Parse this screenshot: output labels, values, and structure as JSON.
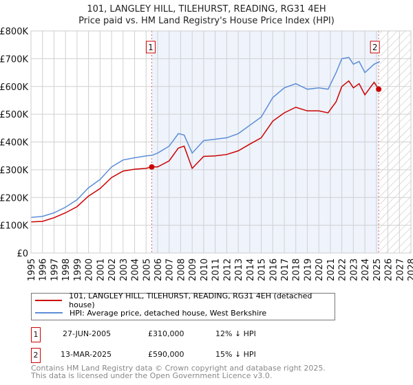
{
  "chart_data": {
    "type": "line",
    "title": "101, LANGLEY HILL, TILEHURST, READING, RG31 4EH",
    "subtitle": "Price paid vs. HM Land Registry's House Price Index (HPI)",
    "xlim": [
      1995,
      2028
    ],
    "ylim": [
      0,
      800000
    ],
    "y_ticks": [
      {
        "v": 0,
        "label": "£0"
      },
      {
        "v": 100000,
        "label": "£100K"
      },
      {
        "v": 200000,
        "label": "£200K"
      },
      {
        "v": 300000,
        "label": "£300K"
      },
      {
        "v": 400000,
        "label": "£400K"
      },
      {
        "v": 500000,
        "label": "£500K"
      },
      {
        "v": 600000,
        "label": "£600K"
      },
      {
        "v": 700000,
        "label": "£700K"
      },
      {
        "v": 800000,
        "label": "£800K"
      }
    ],
    "x_ticks": [
      "1995",
      "1996",
      "1997",
      "1998",
      "1999",
      "2000",
      "2001",
      "2002",
      "2003",
      "2004",
      "2005",
      "2006",
      "2007",
      "2008",
      "2009",
      "2010",
      "2011",
      "2012",
      "2013",
      "2014",
      "2015",
      "2016",
      "2017",
      "2018",
      "2019",
      "2020",
      "2021",
      "2022",
      "2023",
      "2024",
      "2025",
      "2026",
      "2027",
      "2028"
    ],
    "grid": true,
    "series": [
      {
        "name": "101, LANGLEY HILL, TILEHURST, READING, RG31 4EH (detached house)",
        "color": "#cc0000",
        "x": [
          1995,
          1996,
          1997,
          1998,
          1999,
          2000,
          2001,
          2002,
          2003,
          2004,
          2005,
          2005.5,
          2006,
          2007,
          2007.8,
          2008.3,
          2009,
          2010,
          2011,
          2012,
          2013,
          2014,
          2015,
          2016,
          2017,
          2018,
          2019,
          2020,
          2020.8,
          2021.5,
          2022,
          2022.6,
          2023,
          2023.5,
          2024,
          2024.8,
          2025.2
        ],
        "y": [
          112000,
          114000,
          127000,
          145000,
          167000,
          205000,
          232000,
          272000,
          295000,
          302000,
          305000,
          310000,
          310000,
          332000,
          378000,
          385000,
          305000,
          348000,
          350000,
          355000,
          368000,
          392000,
          415000,
          475000,
          505000,
          525000,
          512000,
          512000,
          505000,
          545000,
          600000,
          620000,
          595000,
          610000,
          570000,
          615000,
          590000
        ]
      },
      {
        "name": "HPI: Average price, detached house, West Berkshire",
        "color": "#5b8dd6",
        "x": [
          1995,
          1996,
          1997,
          1998,
          1999,
          2000,
          2001,
          2002,
          2003,
          2004,
          2005,
          2005.5,
          2006,
          2007,
          2007.8,
          2008.3,
          2009,
          2010,
          2011,
          2012,
          2013,
          2014,
          2015,
          2016,
          2017,
          2018,
          2019,
          2020,
          2020.8,
          2021.5,
          2022,
          2022.6,
          2023,
          2023.5,
          2024,
          2024.8,
          2025.3
        ],
        "y": [
          128000,
          132000,
          145000,
          165000,
          192000,
          235000,
          265000,
          310000,
          335000,
          343000,
          350000,
          352000,
          360000,
          385000,
          430000,
          425000,
          360000,
          405000,
          410000,
          415000,
          430000,
          460000,
          490000,
          560000,
          595000,
          610000,
          590000,
          595000,
          590000,
          650000,
          700000,
          705000,
          680000,
          690000,
          650000,
          680000,
          690000
        ]
      }
    ],
    "annotations": [
      {
        "label": "1",
        "x": 2005.49,
        "y": 310000
      },
      {
        "label": "2",
        "x": 2025.2,
        "y": 590000
      }
    ],
    "forecast_hatch_from": 2025.3,
    "legend_position": "bottom"
  },
  "sales": [
    {
      "num": "1",
      "date": "27-JUN-2005",
      "price": "£310,000",
      "hpi": "12% ↓ HPI"
    },
    {
      "num": "2",
      "date": "13-MAR-2025",
      "price": "£590,000",
      "hpi": "15% ↓ HPI"
    }
  ],
  "footer": {
    "line1": "Contains HM Land Registry data © Crown copyright and database right 2025.",
    "line2": "This data is licensed under the Open Government Licence v3.0."
  }
}
